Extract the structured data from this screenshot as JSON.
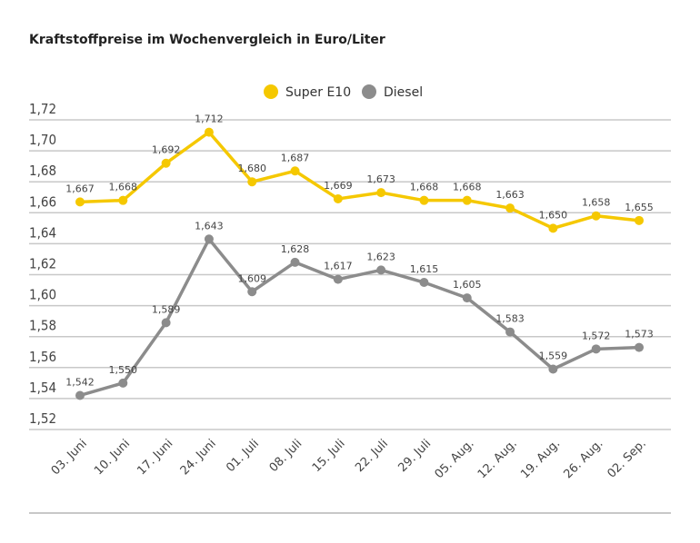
{
  "chart_data": {
    "type": "line",
    "title": "Kraftstoffpreise im Wochenvergleich in Euro/Liter",
    "categories": [
      "03. Juni",
      "10. Juni",
      "17. Juni",
      "24. Juni",
      "01. Juli",
      "08. Juli",
      "15. Juli",
      "22. Juli",
      "29. Juli",
      "05. Aug.",
      "12. Aug.",
      "19. Aug.",
      "26. Aug.",
      "02. Sep."
    ],
    "ylim": [
      1.52,
      1.72
    ],
    "yticks": [
      "1,52",
      "1,54",
      "1,56",
      "1,58",
      "1,60",
      "1,62",
      "1,64",
      "1,66",
      "1,68",
      "1,70",
      "1,72"
    ],
    "grid": true,
    "legend": "top-center",
    "series": [
      {
        "name": "Super E10",
        "color": "#f5c800",
        "values": [
          1.667,
          1.668,
          1.692,
          1.712,
          1.68,
          1.687,
          1.669,
          1.673,
          1.668,
          1.668,
          1.663,
          1.65,
          1.658,
          1.655
        ],
        "labels": [
          "1,667",
          "1,668",
          "1,692",
          "1,712",
          "1,680",
          "1,687",
          "1,669",
          "1,673",
          "1,668",
          "1,668",
          "1,663",
          "1,650",
          "1,658",
          "1,655"
        ]
      },
      {
        "name": "Diesel",
        "color": "#8c8c8c",
        "values": [
          1.542,
          1.55,
          1.589,
          1.643,
          1.609,
          1.628,
          1.617,
          1.623,
          1.615,
          1.605,
          1.583,
          1.559,
          1.572,
          1.573
        ],
        "labels": [
          "1,542",
          "1,550",
          "1,589",
          "1,643",
          "1,609",
          "1,628",
          "1,617",
          "1,623",
          "1,615",
          "1,605",
          "1,583",
          "1,559",
          "1,572",
          "1,573"
        ]
      }
    ]
  }
}
